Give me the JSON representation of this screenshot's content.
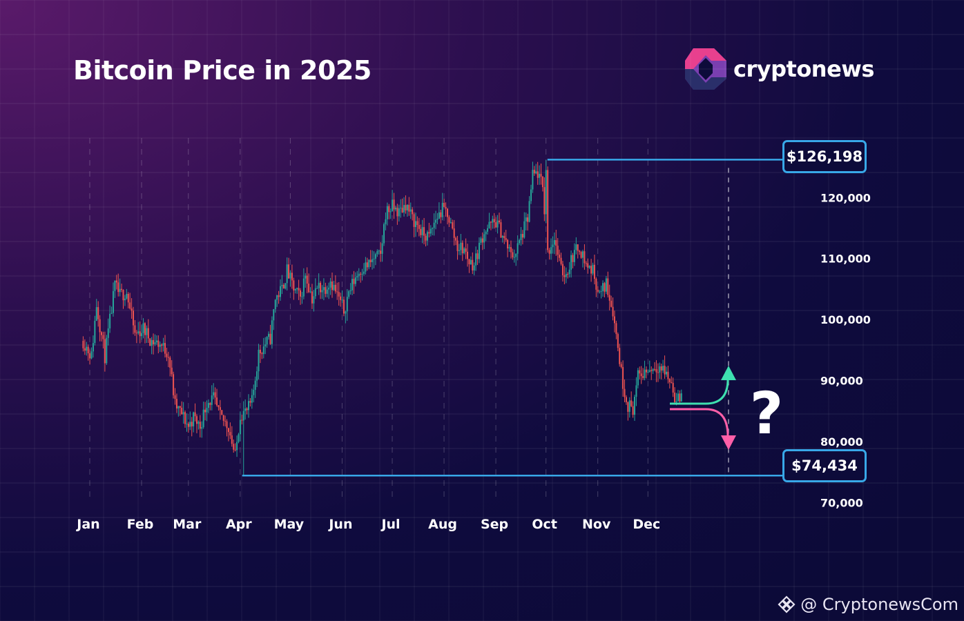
{
  "title": "Bitcoin Price in 2025",
  "brand": {
    "name": "cryptonews",
    "handle": "@ CryptonewsCom"
  },
  "colors": {
    "up": "#26a69a",
    "down": "#ef5350",
    "level_line": "#38a8e8",
    "up_arrow": "#3ee0b0",
    "down_arrow": "#ff5fa8",
    "brand_pink": "#e8408e",
    "brand_purple": "#7a3fb0"
  },
  "chart_data": {
    "type": "candlestick",
    "title": "Bitcoin Price in 2025",
    "categories": [
      "Jan",
      "Feb",
      "Mar",
      "Apr",
      "May",
      "Jun",
      "Jul",
      "Aug",
      "Sep",
      "Oct",
      "Nov",
      "Dec"
    ],
    "yticks": [
      70000,
      80000,
      90000,
      100000,
      110000,
      120000
    ],
    "ytick_labels": [
      "70,000",
      "80,000",
      "90,000",
      "100,000",
      "110,000",
      "120,000"
    ],
    "ylim": [
      68000,
      128000
    ],
    "grid": true,
    "close_path": [
      [
        1,
        96500
      ],
      [
        6,
        94000
      ],
      [
        9,
        102500
      ],
      [
        14,
        94000
      ],
      [
        20,
        105500
      ],
      [
        23,
        104000
      ],
      [
        27,
        104500
      ],
      [
        32,
        97500
      ],
      [
        37,
        98500
      ],
      [
        42,
        96500
      ],
      [
        47,
        96000
      ],
      [
        52,
        94500
      ],
      [
        56,
        86000
      ],
      [
        60,
        84500
      ],
      [
        64,
        82500
      ],
      [
        67,
        84000
      ],
      [
        71,
        82500
      ],
      [
        75,
        86500
      ],
      [
        79,
        87000
      ],
      [
        83,
        84000
      ],
      [
        88,
        82500
      ],
      [
        92,
        77500
      ],
      [
        95,
        84500
      ],
      [
        99,
        85000
      ],
      [
        102,
        86500
      ],
      [
        106,
        94500
      ],
      [
        110,
        96000
      ],
      [
        113,
        97000
      ],
      [
        116,
        103500
      ],
      [
        120,
        105000
      ],
      [
        123,
        108000
      ],
      [
        127,
        105000
      ],
      [
        131,
        103500
      ],
      [
        134,
        107500
      ],
      [
        138,
        103500
      ],
      [
        142,
        105500
      ],
      [
        145,
        105000
      ],
      [
        149,
        106500
      ],
      [
        153,
        104000
      ],
      [
        157,
        101500
      ],
      [
        160,
        104500
      ],
      [
        164,
        107000
      ],
      [
        168,
        108500
      ],
      [
        172,
        109000
      ],
      [
        175,
        110000
      ],
      [
        179,
        110500
      ],
      [
        182,
        117500
      ],
      [
        186,
        118500
      ],
      [
        190,
        117500
      ],
      [
        194,
        119000
      ],
      [
        198,
        116500
      ],
      [
        201,
        115500
      ],
      [
        204,
        114000
      ],
      [
        208,
        113500
      ],
      [
        212,
        116500
      ],
      [
        216,
        118000
      ],
      [
        219,
        117500
      ],
      [
        222,
        114500
      ],
      [
        225,
        112000
      ],
      [
        229,
        111500
      ],
      [
        232,
        109500
      ],
      [
        235,
        109000
      ],
      [
        238,
        112000
      ],
      [
        241,
        114500
      ],
      [
        245,
        115500
      ],
      [
        248,
        116000
      ],
      [
        251,
        114500
      ],
      [
        254,
        112500
      ],
      [
        257,
        110500
      ],
      [
        260,
        111000
      ],
      [
        263,
        113500
      ],
      [
        267,
        116500
      ],
      [
        270,
        123500
      ],
      [
        273,
        124000
      ],
      [
        276,
        121500
      ],
      [
        279,
        111000
      ],
      [
        283,
        113500
      ],
      [
        287,
        108000
      ],
      [
        290,
        107500
      ],
      [
        294,
        110500
      ],
      [
        298,
        112000
      ],
      [
        302,
        109000
      ],
      [
        306,
        108000
      ],
      [
        310,
        104000
      ],
      [
        314,
        106000
      ],
      [
        318,
        101500
      ],
      [
        321,
        95500
      ],
      [
        324,
        89500
      ],
      [
        327,
        86000
      ],
      [
        330,
        85500
      ],
      [
        333,
        90500
      ],
      [
        337,
        91500
      ],
      [
        341,
        92000
      ],
      [
        345,
        92500
      ],
      [
        349,
        91500
      ],
      [
        353,
        89500
      ],
      [
        356,
        86500
      ],
      [
        359,
        87500
      ]
    ],
    "high": {
      "value": 126198,
      "label": "$126,198",
      "date_day": 278
    },
    "low": {
      "value": 74434,
      "label": "$74,434",
      "date_day": 97
    }
  }
}
